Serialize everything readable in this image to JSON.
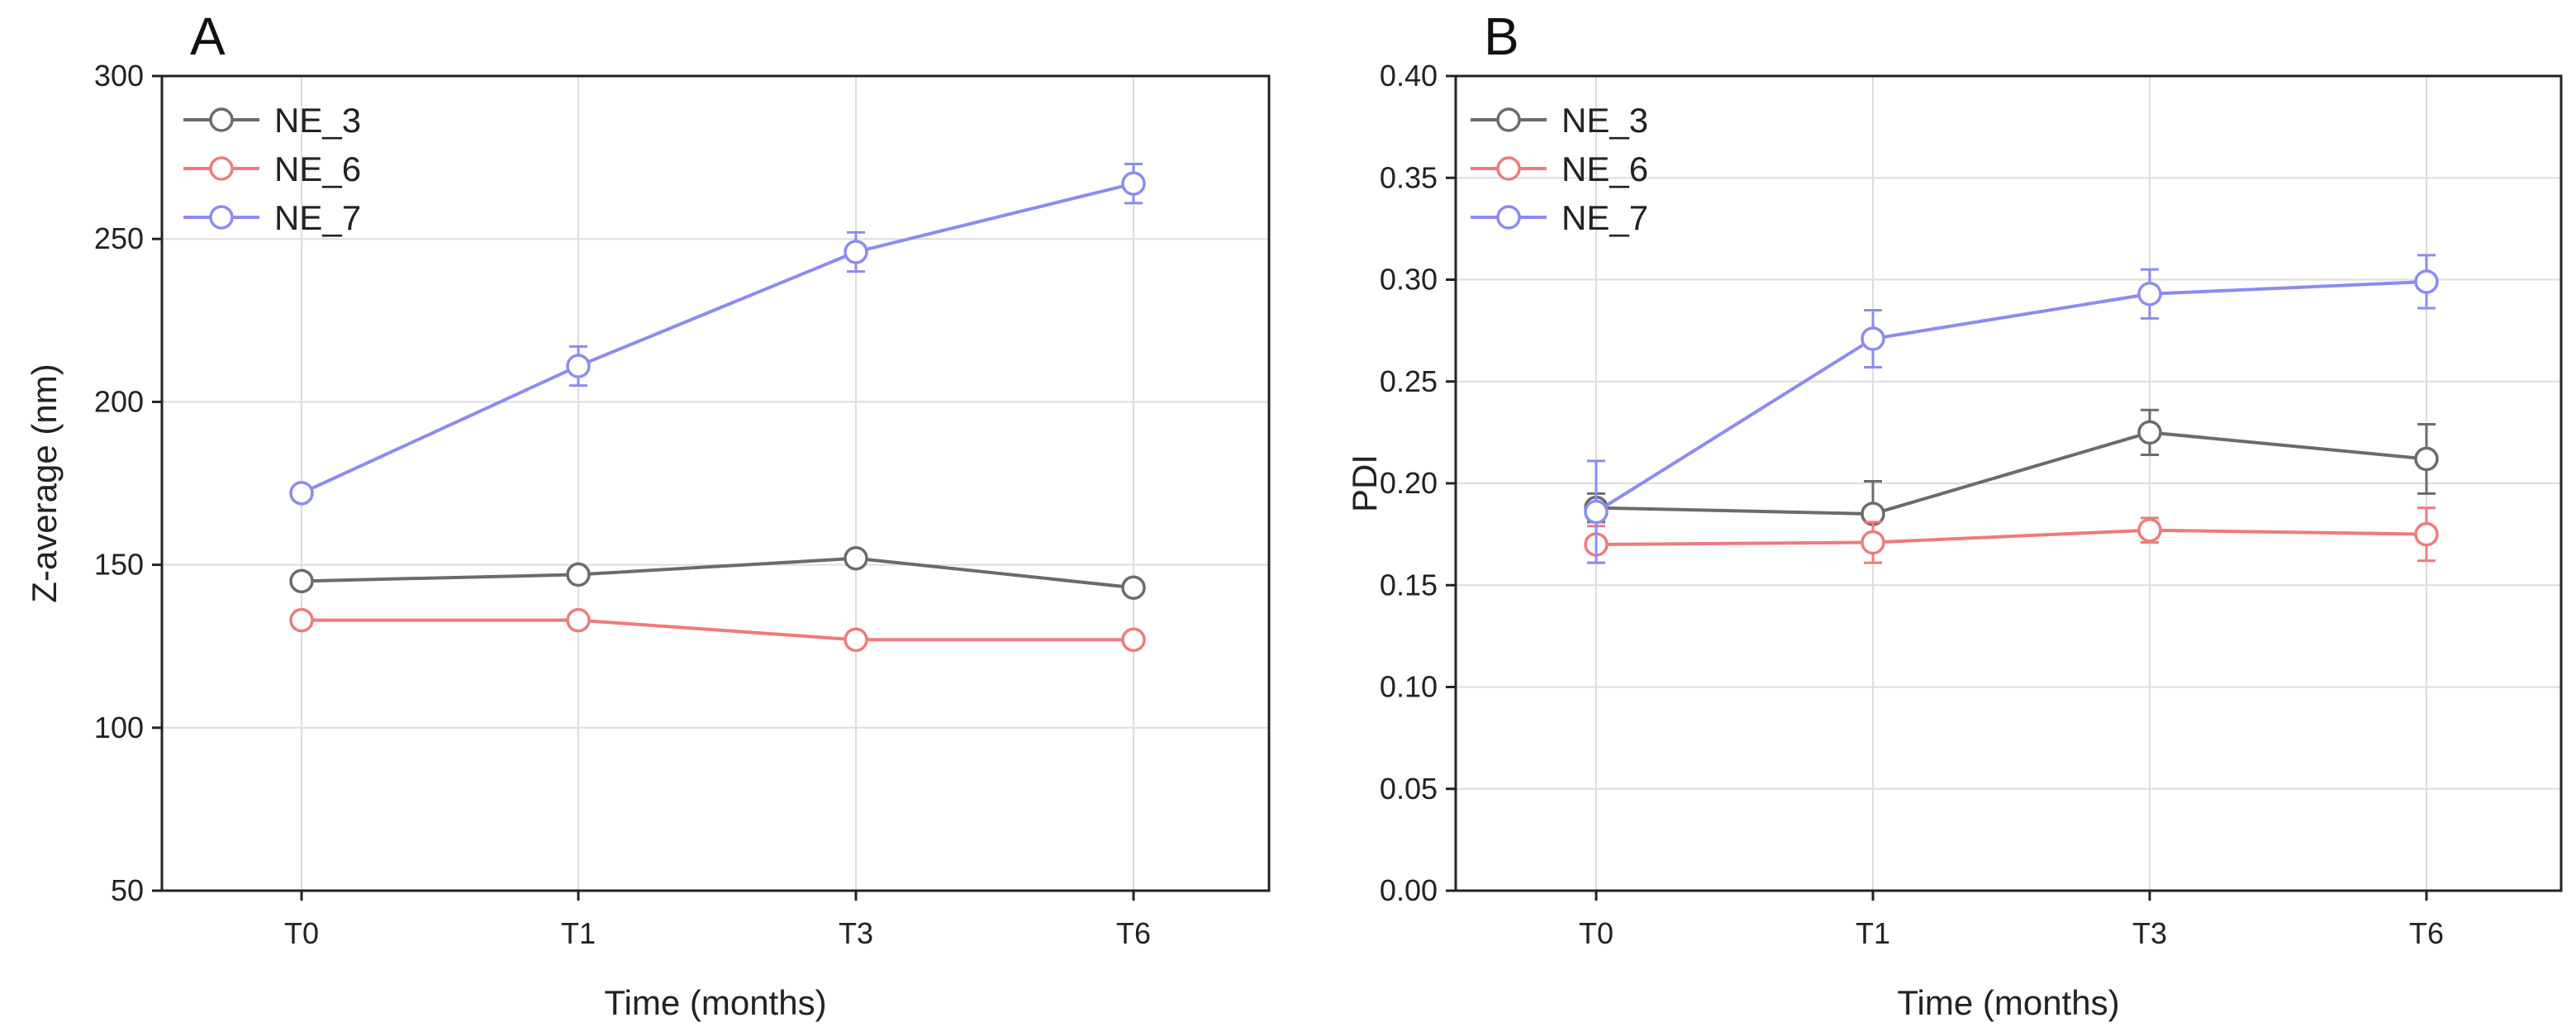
{
  "chart_data": [
    {
      "panel": "A",
      "type": "line",
      "categories": [
        "T0",
        "T1",
        "T3",
        "T6"
      ],
      "xlabel": "Time (months)",
      "ylabel": "Z-average (nm)",
      "ylim": [
        50,
        300
      ],
      "yticks": [
        50,
        100,
        150,
        200,
        250,
        300
      ],
      "yticks_text": [
        "50",
        "100",
        "150",
        "200",
        "250",
        "300"
      ],
      "grid": true,
      "legend": "top-left",
      "series": [
        {
          "name": "NE_3",
          "color": "#6b6b6b",
          "values": [
            145,
            147,
            152,
            143
          ],
          "errors": [
            2,
            2,
            2,
            2
          ]
        },
        {
          "name": "NE_6",
          "color": "#f07a7a",
          "values": [
            133,
            133,
            127,
            127
          ],
          "errors": [
            2,
            2,
            2,
            2
          ]
        },
        {
          "name": "NE_7",
          "color": "#8b8bf2",
          "values": [
            172,
            211,
            246,
            267
          ],
          "errors": [
            2,
            6,
            6,
            6
          ]
        }
      ]
    },
    {
      "panel": "B",
      "type": "line",
      "categories": [
        "T0",
        "T1",
        "T3",
        "T6"
      ],
      "xlabel": "Time (months)",
      "ylabel": "PDI",
      "ylim": [
        0,
        0.4
      ],
      "yticks": [
        0,
        0.05,
        0.1,
        0.15,
        0.2,
        0.25,
        0.3,
        0.35,
        0.4
      ],
      "yticks_text": [
        "0.00",
        "0.05",
        "0.10",
        "0.15",
        "0.20",
        "0.25",
        "0.30",
        "0.35",
        "0.40"
      ],
      "grid": true,
      "legend": "top-left",
      "series": [
        {
          "name": "NE_3",
          "color": "#6b6b6b",
          "values": [
            0.188,
            0.185,
            0.225,
            0.212
          ],
          "errors": [
            0.007,
            0.016,
            0.011,
            0.017
          ]
        },
        {
          "name": "NE_6",
          "color": "#f07a7a",
          "values": [
            0.17,
            0.171,
            0.177,
            0.175
          ],
          "errors": [
            0.009,
            0.01,
            0.006,
            0.013
          ]
        },
        {
          "name": "NE_7",
          "color": "#8b8bf2",
          "values": [
            0.186,
            0.271,
            0.293,
            0.299
          ],
          "errors": [
            0.025,
            0.014,
            0.012,
            0.013
          ]
        }
      ]
    }
  ]
}
